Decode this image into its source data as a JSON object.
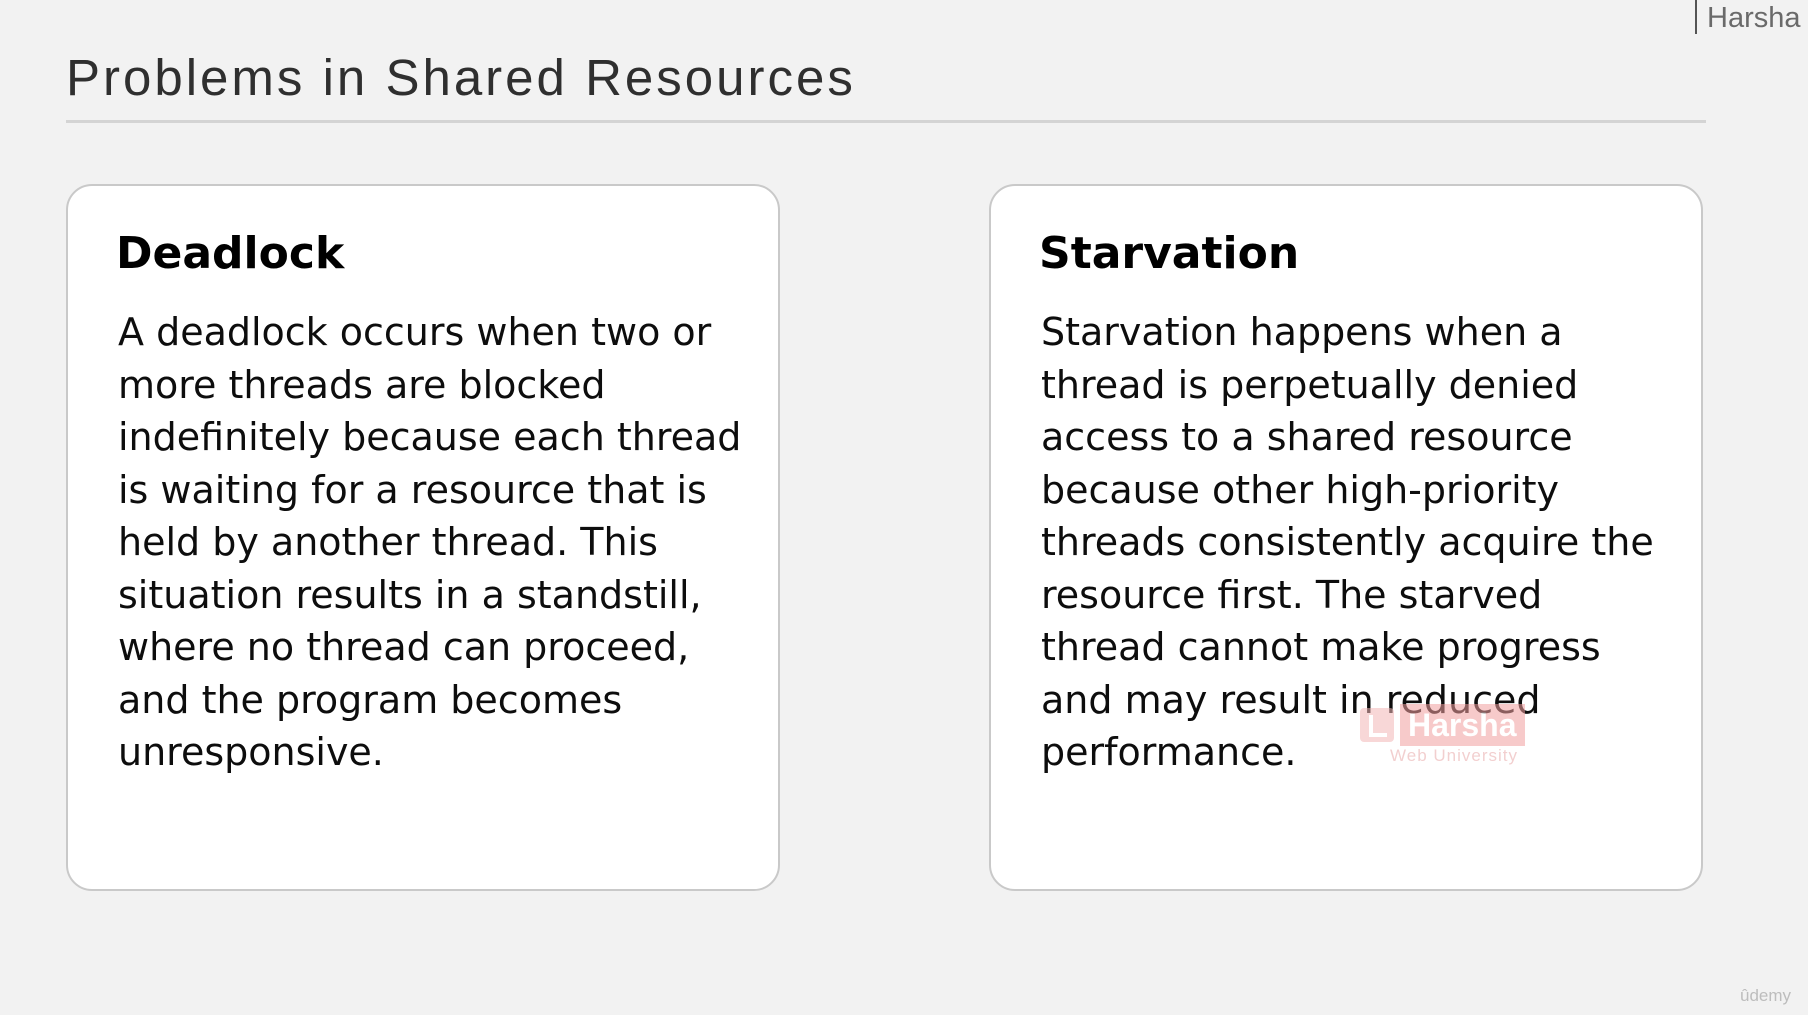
{
  "author_tag": "Harsha",
  "slide": {
    "title": "Problems in Shared Resources"
  },
  "cards": [
    {
      "heading": "Deadlock",
      "body": "A deadlock occurs when two or more threads are blocked indefinitely because each thread is waiting for a resource that is held by another thread. This situation results in a standstill, where no thread can proceed, and the program becomes unresponsive."
    },
    {
      "heading": "Starvation",
      "body": "Starvation happens when a thread is perpetually denied access to a shared resource because other high-priority threads consistently acquire the resource first. The starved thread cannot make progress and may result in reduced performance."
    }
  ],
  "watermark": {
    "name": "Harsha",
    "subtitle": "Web University",
    "color": "#f2a0a0"
  },
  "platform_mark": "ûdemy"
}
